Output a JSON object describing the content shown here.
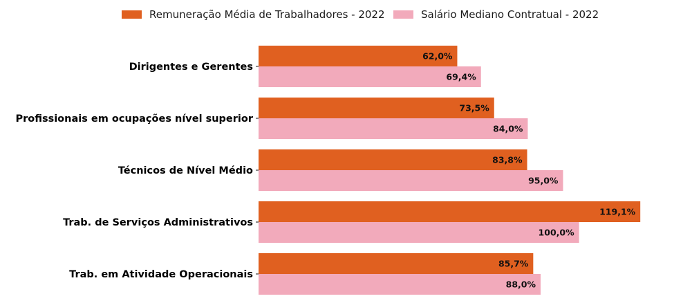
{
  "chart_data": {
    "type": "bar",
    "orientation": "horizontal",
    "categories": [
      "Dirigentes e Gerentes",
      "Profissionais em ocupações nível superior",
      "Técnicos de Nível Médio",
      "Trab. de Serviços Administrativos",
      "Trab. em Atividade Operacionais"
    ],
    "series": [
      {
        "name": "Remuneração Média de Trabalhadores - 2022",
        "color": "#e06020",
        "values": [
          62.0,
          73.5,
          83.8,
          119.1,
          85.7
        ],
        "labels": [
          "62,0%",
          "73,5%",
          "83,8%",
          "119,1%",
          "85,7%"
        ]
      },
      {
        "name": "Salário Mediano Contratual - 2022",
        "color": "#f2aabb",
        "values": [
          69.4,
          84.0,
          95.0,
          100.0,
          88.0
        ],
        "labels": [
          "69,4%",
          "84,0%",
          "95,0%",
          "100,0%",
          "88,0%"
        ]
      }
    ],
    "xlim": [
      0,
      121
    ],
    "legend_position": "top-center",
    "grid": false
  }
}
